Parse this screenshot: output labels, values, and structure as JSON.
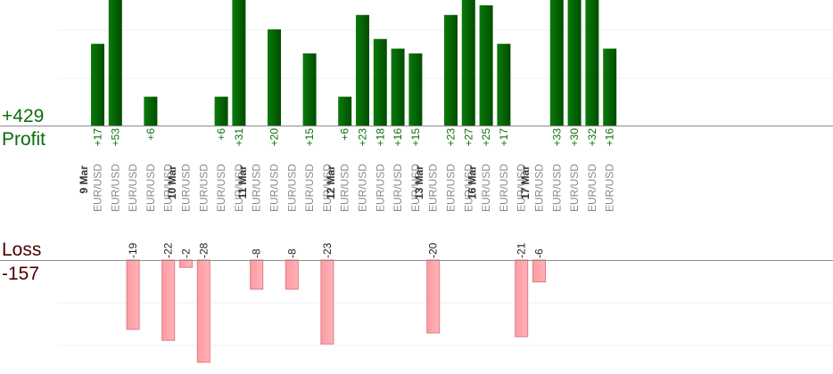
{
  "summary": {
    "profit_total": "+429",
    "profit_label": "Profit",
    "loss_label": "Loss",
    "loss_total": "-157"
  },
  "colors": {
    "profit_bar_dark": "#004d00",
    "profit_bar_light": "#0a7a0a",
    "profit_text": "#0a6e0a",
    "loss_bar_fill": "#ffb3b8",
    "loss_bar_stroke": "#e07c84",
    "loss_text": "#222222",
    "label_gray": "#8a8a8a",
    "date_text": "#333333"
  },
  "chart_data": {
    "type": "bar",
    "profit_axis": {
      "ylim": [
        0,
        26
      ]
    },
    "loss_axis": {
      "ylim": [
        -30,
        0
      ]
    },
    "categories": [
      {
        "date": "9 Mar",
        "pair": "EUR/USD",
        "value": 17
      },
      {
        "date": "",
        "pair": "EUR/USD",
        "value": 53
      },
      {
        "date": "",
        "pair": "EUR/USD",
        "value": -19
      },
      {
        "date": "",
        "pair": "EUR/USD",
        "value": 6
      },
      {
        "date": "",
        "pair": "EUR/USD",
        "value": -22
      },
      {
        "date": "10 Mar",
        "pair": "EUR/USD",
        "value": -2
      },
      {
        "date": "",
        "pair": "EUR/USD",
        "value": -28
      },
      {
        "date": "",
        "pair": "EUR/USD",
        "value": 6
      },
      {
        "date": "",
        "pair": "EUR/USD",
        "value": 31
      },
      {
        "date": "11 Mar",
        "pair": "EUR/USD",
        "value": -8
      },
      {
        "date": "",
        "pair": "EUR/USD",
        "value": 20
      },
      {
        "date": "",
        "pair": "EUR/USD",
        "value": -8
      },
      {
        "date": "",
        "pair": "EUR/USD",
        "value": 15
      },
      {
        "date": "",
        "pair": "EUR/USD",
        "value": -23
      },
      {
        "date": "12 Mar",
        "pair": "EUR/USD",
        "value": 6
      },
      {
        "date": "",
        "pair": "EUR/USD",
        "value": 23
      },
      {
        "date": "",
        "pair": "EUR/USD",
        "value": 18
      },
      {
        "date": "",
        "pair": "EUR/USD",
        "value": 16
      },
      {
        "date": "",
        "pair": "EUR/USD",
        "value": 15
      },
      {
        "date": "13 Mar",
        "pair": "EUR/USD",
        "value": -20
      },
      {
        "date": "",
        "pair": "EUR/USD",
        "value": 23
      },
      {
        "date": "",
        "pair": "EUR/USD",
        "value": 27
      },
      {
        "date": "16 Mar",
        "pair": "EUR/USD",
        "value": 25
      },
      {
        "date": "",
        "pair": "EUR/USD",
        "value": 17
      },
      {
        "date": "",
        "pair": "EUR/USD",
        "value": -21
      },
      {
        "date": "17 Mar",
        "pair": "EUR/USD",
        "value": -6
      },
      {
        "date": "",
        "pair": "EUR/USD",
        "value": 33
      },
      {
        "date": "",
        "pair": "EUR/USD",
        "value": 30
      },
      {
        "date": "",
        "pair": "EUR/USD",
        "value": 32
      },
      {
        "date": "",
        "pair": "EUR/USD",
        "value": 16
      }
    ]
  }
}
